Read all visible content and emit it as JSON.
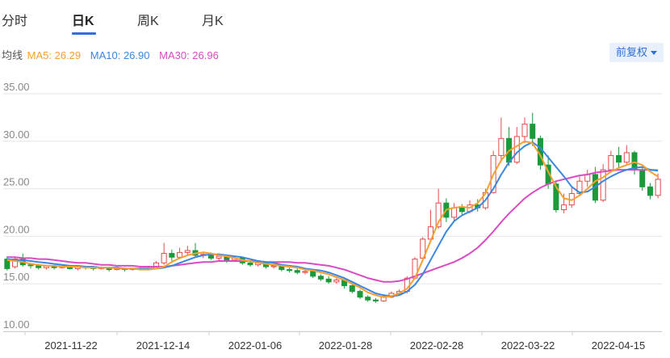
{
  "tabs": [
    {
      "label": "分时",
      "active": false
    },
    {
      "label": "日K",
      "active": true
    },
    {
      "label": "周K",
      "active": false
    },
    {
      "label": "月K",
      "active": false
    }
  ],
  "legend": {
    "prefix": "均线",
    "ma5": {
      "label": "MA5: 26.29",
      "color": "#f5a030"
    },
    "ma10": {
      "label": "MA10: 26.90",
      "color": "#3a86e0"
    },
    "ma30": {
      "label": "MA30: 26.96",
      "color": "#d94bc2"
    }
  },
  "adjust_button": "前复权",
  "colors": {
    "up": "#e84a4a",
    "down": "#1a9a3a",
    "grid": "#e6e6e6"
  },
  "chart_data": {
    "type": "candlestick",
    "title": "",
    "ylim": [
      10,
      35
    ],
    "y_ticks": [
      "35.00",
      "30.00",
      "25.00",
      "20.00",
      "15.00",
      "10.00"
    ],
    "x_ticks": [
      "2021-11-22",
      "2021-12-14",
      "2022-01-06",
      "2022-01-28",
      "2022-02-28",
      "2022-03-22",
      "2022-04-15"
    ],
    "grid": true,
    "ma5": [
      17.5,
      17.4,
      17.3,
      17.1,
      17.0,
      16.9,
      16.9,
      16.8,
      16.8,
      16.8,
      16.7,
      16.7,
      16.7,
      16.7,
      16.6,
      16.6,
      16.6,
      16.5,
      16.5,
      16.6,
      16.8,
      17.3,
      17.7,
      18.0,
      18.2,
      18.3,
      18.2,
      18.0,
      17.9,
      17.7,
      17.5,
      17.4,
      17.2,
      17.1,
      17.0,
      16.9,
      16.8,
      16.7,
      16.5,
      16.4,
      16.2,
      16.0,
      15.7,
      15.4,
      15.0,
      14.6,
      14.1,
      13.8,
      13.6,
      13.7,
      14.0,
      14.5,
      15.6,
      17.5,
      19.5,
      21.5,
      22.8,
      23.0,
      23.1,
      23.0,
      23.5,
      24.5,
      26.5,
      28.0,
      29.0,
      29.5,
      30.0,
      29.8,
      28.5,
      26.8,
      25.2,
      24.0,
      23.8,
      24.3,
      25.0,
      25.8,
      26.2,
      26.8,
      27.2,
      27.5,
      27.8,
      27.5,
      26.8,
      26.29
    ],
    "ma10": [
      17.6,
      17.5,
      17.5,
      17.4,
      17.3,
      17.2,
      17.1,
      17.0,
      16.9,
      16.9,
      16.8,
      16.8,
      16.7,
      16.7,
      16.7,
      16.6,
      16.6,
      16.6,
      16.6,
      16.6,
      16.7,
      16.9,
      17.2,
      17.5,
      17.8,
      18.0,
      18.1,
      18.1,
      18.0,
      17.9,
      17.8,
      17.6,
      17.4,
      17.3,
      17.2,
      17.0,
      16.9,
      16.8,
      16.6,
      16.5,
      16.4,
      16.2,
      15.9,
      15.6,
      15.2,
      14.8,
      14.4,
      14.0,
      13.8,
      13.7,
      13.8,
      14.2,
      14.9,
      16.0,
      17.5,
      19.0,
      20.5,
      21.6,
      22.2,
      22.6,
      23.0,
      23.8,
      25.0,
      26.5,
      27.8,
      28.8,
      29.5,
      29.9,
      29.3,
      28.3,
      27.3,
      26.3,
      25.2,
      24.6,
      24.7,
      25.2,
      25.8,
      26.3,
      26.7,
      27.0,
      27.2,
      27.3,
      27.0,
      26.9
    ],
    "ma30": [
      17.8,
      17.8,
      17.7,
      17.7,
      17.6,
      17.6,
      17.5,
      17.4,
      17.3,
      17.2,
      17.2,
      17.1,
      17.0,
      17.0,
      16.9,
      16.9,
      16.9,
      16.8,
      16.8,
      16.8,
      16.8,
      16.9,
      17.0,
      17.1,
      17.2,
      17.3,
      17.3,
      17.4,
      17.4,
      17.4,
      17.4,
      17.4,
      17.4,
      17.3,
      17.3,
      17.3,
      17.3,
      17.2,
      17.2,
      17.1,
      17.0,
      16.9,
      16.7,
      16.5,
      16.2,
      15.9,
      15.6,
      15.4,
      15.2,
      15.2,
      15.3,
      15.5,
      15.8,
      16.1,
      16.4,
      16.7,
      17.0,
      17.3,
      17.7,
      18.2,
      18.8,
      19.6,
      20.5,
      21.5,
      22.4,
      23.2,
      24.0,
      24.6,
      25.1,
      25.5,
      25.8,
      26.0,
      26.2,
      26.4,
      26.5,
      26.7,
      26.8,
      26.9,
      27.0,
      27.0,
      27.0,
      27.0,
      27.0,
      26.96
    ],
    "candles": [
      [
        17.6,
        16.6,
        17.9,
        16.4
      ],
      [
        16.8,
        17.6,
        17.8,
        16.6
      ],
      [
        17.6,
        17.0,
        18.2,
        16.8
      ],
      [
        17.0,
        16.9,
        17.2,
        16.6
      ],
      [
        16.9,
        16.7,
        17.1,
        16.5
      ],
      [
        16.7,
        16.9,
        17.0,
        16.5
      ],
      [
        16.9,
        16.7,
        17.0,
        16.5
      ],
      [
        16.7,
        16.8,
        17.0,
        16.6
      ],
      [
        16.8,
        16.6,
        16.9,
        16.5
      ],
      [
        16.6,
        16.8,
        16.9,
        16.4
      ],
      [
        16.8,
        16.7,
        16.9,
        16.5
      ],
      [
        16.7,
        16.6,
        16.8,
        16.4
      ],
      [
        16.6,
        16.7,
        16.8,
        16.5
      ],
      [
        16.7,
        16.5,
        16.8,
        16.3
      ],
      [
        16.5,
        16.6,
        16.7,
        16.4
      ],
      [
        16.6,
        16.5,
        16.7,
        16.3
      ],
      [
        16.5,
        16.6,
        16.7,
        16.4
      ],
      [
        16.6,
        16.5,
        16.7,
        16.4
      ],
      [
        16.5,
        16.6,
        16.7,
        16.4
      ],
      [
        16.6,
        17.2,
        17.4,
        16.5
      ],
      [
        17.2,
        18.2,
        19.3,
        17.0
      ],
      [
        18.2,
        17.8,
        18.6,
        17.4
      ],
      [
        17.8,
        18.3,
        18.8,
        17.6
      ],
      [
        18.3,
        18.5,
        19.0,
        18.0
      ],
      [
        18.5,
        18.0,
        19.3,
        17.8
      ],
      [
        18.0,
        18.1,
        18.4,
        17.7
      ],
      [
        18.1,
        17.7,
        18.3,
        17.5
      ],
      [
        17.7,
        17.9,
        18.2,
        17.4
      ],
      [
        17.9,
        17.5,
        18.0,
        17.2
      ],
      [
        17.5,
        17.7,
        17.9,
        17.3
      ],
      [
        17.7,
        17.2,
        17.8,
        17.0
      ],
      [
        17.2,
        17.0,
        17.4,
        16.8
      ],
      [
        17.0,
        17.2,
        17.4,
        16.8
      ],
      [
        17.2,
        16.8,
        17.3,
        16.6
      ],
      [
        16.8,
        16.9,
        17.1,
        16.6
      ],
      [
        16.9,
        16.5,
        17.0,
        16.3
      ],
      [
        16.5,
        16.4,
        16.7,
        16.2
      ],
      [
        16.4,
        16.2,
        16.6,
        16.0
      ],
      [
        16.2,
        16.3,
        16.5,
        16.0
      ],
      [
        16.3,
        15.8,
        16.4,
        15.6
      ],
      [
        15.8,
        15.5,
        16.0,
        15.3
      ],
      [
        15.5,
        15.2,
        15.8,
        15.0
      ],
      [
        15.2,
        15.4,
        15.6,
        15.0
      ],
      [
        15.4,
        14.8,
        15.5,
        14.5
      ],
      [
        14.8,
        14.2,
        15.0,
        14.0
      ],
      [
        14.2,
        13.6,
        14.4,
        13.4
      ],
      [
        13.6,
        13.3,
        13.8,
        13.1
      ],
      [
        13.3,
        13.2,
        13.5,
        13.0
      ],
      [
        13.2,
        13.6,
        13.9,
        13.1
      ],
      [
        13.6,
        14.0,
        14.2,
        13.5
      ],
      [
        14.0,
        14.2,
        14.4,
        13.8
      ],
      [
        14.2,
        15.6,
        15.8,
        14.0
      ],
      [
        15.6,
        17.6,
        17.8,
        15.5
      ],
      [
        17.7,
        19.7,
        19.9,
        17.6
      ],
      [
        19.7,
        21.0,
        22.8,
        19.5
      ],
      [
        21.0,
        23.5,
        25.0,
        20.8
      ],
      [
        23.5,
        22.0,
        24.0,
        21.5
      ],
      [
        22.0,
        23.0,
        23.5,
        21.6
      ],
      [
        23.0,
        22.6,
        23.4,
        22.2
      ],
      [
        22.6,
        23.3,
        23.8,
        22.4
      ],
      [
        23.3,
        23.0,
        23.9,
        22.6
      ],
      [
        23.0,
        24.6,
        25.0,
        22.8
      ],
      [
        24.6,
        28.5,
        29.0,
        24.5
      ],
      [
        28.5,
        30.3,
        32.5,
        27.8
      ],
      [
        30.3,
        27.8,
        31.5,
        27.4
      ],
      [
        27.8,
        30.5,
        31.5,
        27.6
      ],
      [
        30.5,
        31.8,
        32.5,
        29.8
      ],
      [
        31.8,
        30.3,
        33.0,
        29.5
      ],
      [
        30.3,
        27.5,
        30.6,
        27.0
      ],
      [
        27.5,
        25.5,
        28.5,
        25.0
      ],
      [
        25.5,
        22.8,
        25.8,
        22.5
      ],
      [
        22.8,
        23.3,
        24.5,
        22.4
      ],
      [
        23.3,
        24.5,
        25.2,
        23.0
      ],
      [
        24.5,
        25.8,
        26.3,
        24.2
      ],
      [
        25.8,
        26.5,
        27.0,
        25.2
      ],
      [
        26.5,
        23.8,
        27.3,
        23.5
      ],
      [
        23.8,
        27.0,
        27.6,
        23.6
      ],
      [
        27.0,
        28.5,
        29.0,
        26.8
      ],
      [
        28.5,
        27.8,
        29.4,
        27.2
      ],
      [
        27.8,
        28.8,
        29.6,
        27.6
      ],
      [
        28.8,
        27.0,
        29.0,
        26.5
      ],
      [
        27.0,
        25.2,
        27.4,
        24.8
      ],
      [
        25.2,
        24.3,
        25.6,
        23.9
      ],
      [
        24.3,
        26.0,
        26.6,
        24.0
      ]
    ]
  }
}
